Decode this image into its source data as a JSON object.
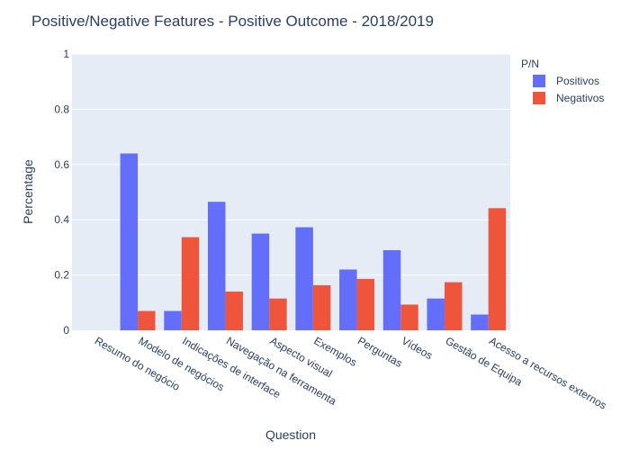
{
  "chart_data": {
    "type": "bar",
    "title": "Positive/Negative Features - Positive Outcome  - 2018/2019",
    "xlabel": "Question",
    "ylabel": "Percentage",
    "ylim": [
      0,
      1
    ],
    "yticks": [
      "0",
      "0.2",
      "0.4",
      "0.6",
      "0.8",
      "1"
    ],
    "grid": true,
    "legend_title": "P/N",
    "legend_position": "top-right",
    "categories": [
      "Resumo do negócio",
      "Modelo de negócios",
      "Indicações de interface",
      "Navegação na ferramenta",
      "Aspecto visual",
      "Exemplos",
      "Perguntas",
      "Vídeos",
      "Gestão de Equipa",
      "Acesso a recursos externos"
    ],
    "series": [
      {
        "name": "Positivos",
        "color": "#636efa",
        "values": [
          0,
          0.64,
          0.07,
          0.465,
          0.35,
          0.373,
          0.22,
          0.29,
          0.115,
          0.057
        ]
      },
      {
        "name": "Negativos",
        "color": "#ef553b",
        "values": [
          0,
          0.07,
          0.337,
          0.14,
          0.115,
          0.163,
          0.186,
          0.093,
          0.174,
          0.442
        ]
      }
    ]
  }
}
